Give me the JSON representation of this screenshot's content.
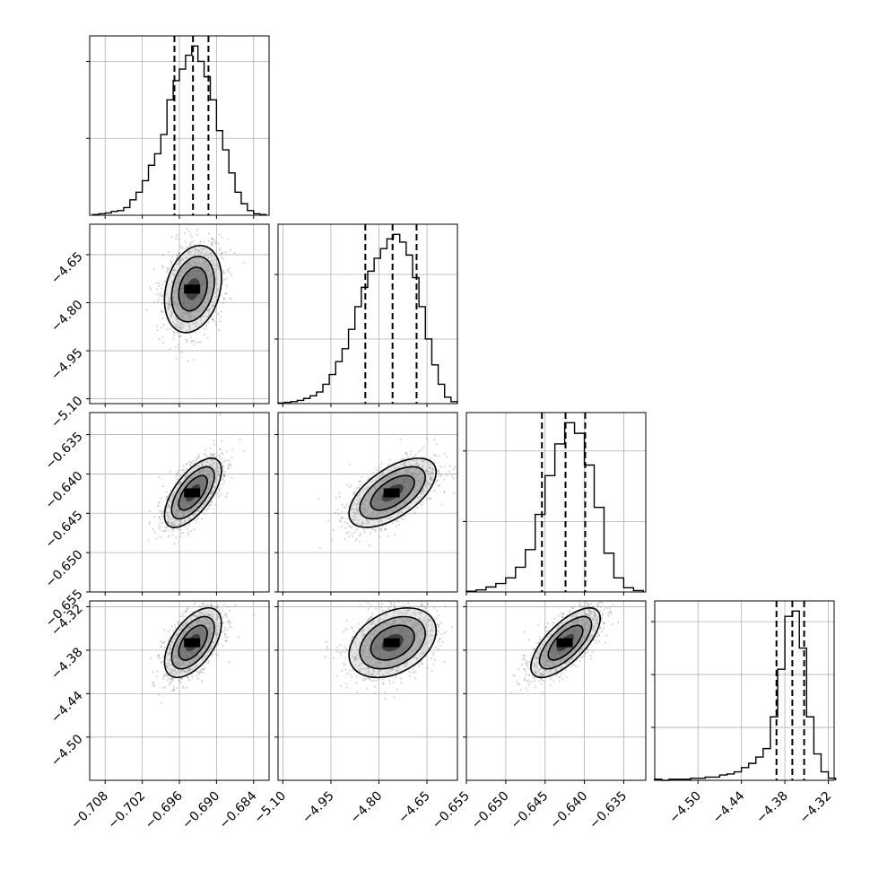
{
  "chart_data": {
    "type": "corner",
    "parameters": [
      {
        "ticks": [
          "−0.708",
          "−0.702",
          "−0.696",
          "−0.690",
          "−0.684"
        ],
        "tick_values": [
          -0.708,
          -0.702,
          -0.696,
          -0.69,
          -0.684
        ],
        "range": [
          -0.7105,
          -0.6815
        ],
        "quantiles": [
          -0.6968,
          -0.6938,
          -0.6913
        ],
        "hist_x": [
          -0.7095,
          -0.7085,
          -0.7075,
          -0.7065,
          -0.7055,
          -0.7045,
          -0.7035,
          -0.7025,
          -0.7015,
          -0.7005,
          -0.6995,
          -0.6985,
          -0.6975,
          -0.6965,
          -0.6955,
          -0.6945,
          -0.6935,
          -0.6925,
          -0.6915,
          -0.6905,
          -0.6895,
          -0.6885,
          -0.6875,
          -0.6865,
          -0.6855,
          -0.6845,
          -0.6835,
          -0.6825
        ],
        "hist_y": [
          1,
          2,
          3,
          5,
          6,
          10,
          20,
          30,
          45,
          65,
          80,
          105,
          150,
          175,
          190,
          208,
          220,
          200,
          180,
          150,
          110,
          85,
          55,
          30,
          15,
          6,
          2,
          1
        ]
      },
      {
        "ticks": [
          "−5.10",
          "−4.95",
          "−4.80",
          "−4.65"
        ],
        "tick_values": [
          -5.1,
          -4.95,
          -4.8,
          -4.65
        ],
        "range": [
          -5.115,
          -4.555
        ],
        "quantiles": [
          -4.8425,
          -4.7575,
          -4.6825
        ],
        "hist_x": [
          -5.105,
          -5.085,
          -5.065,
          -5.045,
          -5.025,
          -5.005,
          -4.985,
          -4.965,
          -4.945,
          -4.925,
          -4.905,
          -4.885,
          -4.865,
          -4.845,
          -4.825,
          -4.805,
          -4.785,
          -4.765,
          -4.745,
          -4.725,
          -4.705,
          -4.685,
          -4.665,
          -4.645,
          -4.625,
          -4.605,
          -4.585,
          -4.565
        ],
        "hist_y": [
          1,
          2,
          3,
          5,
          8,
          12,
          18,
          30,
          45,
          65,
          85,
          115,
          150,
          180,
          205,
          225,
          240,
          255,
          262,
          250,
          230,
          195,
          150,
          100,
          60,
          30,
          10,
          3
        ]
      },
      {
        "ticks": [
          "−0.655",
          "−0.650",
          "−0.645",
          "−0.640",
          "−0.635"
        ],
        "tick_values": [
          -0.655,
          -0.65,
          -0.645,
          -0.64,
          -0.635
        ],
        "range": [
          -0.655,
          -0.6322
        ],
        "quantiles": [
          -0.6454,
          -0.6424,
          -0.6399
        ],
        "hist_x": [
          -0.65438,
          -0.65313,
          -0.65188,
          -0.65063,
          -0.64938,
          -0.64813,
          -0.64688,
          -0.64563,
          -0.64438,
          -0.64313,
          -0.64188,
          -0.64063,
          -0.63938,
          -0.63813,
          -0.63688,
          -0.63563,
          -0.63438,
          -0.63313
        ],
        "hist_y": [
          1,
          3,
          7,
          12,
          20,
          35,
          60,
          110,
          165,
          210,
          240,
          225,
          180,
          120,
          55,
          20,
          6,
          2
        ]
      },
      {
        "ticks": [
          "−4.50",
          "−4.44",
          "−4.38",
          "−4.32"
        ],
        "tick_values": [
          -4.5,
          -4.44,
          -4.38,
          -4.32
        ],
        "range": [
          -4.5597,
          -4.312
        ],
        "quantiles": [
          -4.3916,
          -4.3697,
          -4.3534
        ],
        "hist_x": [
          -4.555,
          -4.545,
          -4.535,
          -4.525,
          -4.515,
          -4.505,
          -4.495,
          -4.485,
          -4.475,
          -4.465,
          -4.455,
          -4.445,
          -4.435,
          -4.425,
          -4.415,
          -4.405,
          -4.395,
          -4.385,
          -4.375,
          -4.365,
          -4.355,
          -4.345,
          -4.335,
          -4.325,
          -4.315
        ],
        "hist_y": [
          1,
          0,
          1,
          1,
          1,
          2,
          2,
          3,
          3,
          5,
          6,
          8,
          12,
          16,
          22,
          30,
          60,
          105,
          155,
          160,
          125,
          60,
          25,
          8,
          2
        ]
      }
    ],
    "pairs": [
      {
        "row": 1,
        "col": 0,
        "mean": [
          -0.6938,
          -4.7575
        ],
        "sd": [
          0.0023,
          0.068
        ],
        "rho": 0.25
      },
      {
        "row": 2,
        "col": 0,
        "mean": [
          -0.6938,
          -0.6424
        ],
        "sd": [
          0.0023,
          0.0022
        ],
        "rho": 0.65
      },
      {
        "row": 2,
        "col": 1,
        "mean": [
          -4.7575,
          -0.6424
        ],
        "sd": [
          0.068,
          0.0022
        ],
        "rho": 0.6
      },
      {
        "row": 3,
        "col": 0,
        "mean": [
          -0.6938,
          -4.3697
        ],
        "sd": [
          0.0023,
          0.024
        ],
        "rho": 0.55
      },
      {
        "row": 3,
        "col": 1,
        "mean": [
          -4.7575,
          -4.3697
        ],
        "sd": [
          0.068,
          0.024
        ],
        "rho": 0.35
      },
      {
        "row": 3,
        "col": 2,
        "mean": [
          -0.6424,
          -4.3697
        ],
        "sd": [
          0.0022,
          0.024
        ],
        "rho": 0.7
      }
    ]
  }
}
